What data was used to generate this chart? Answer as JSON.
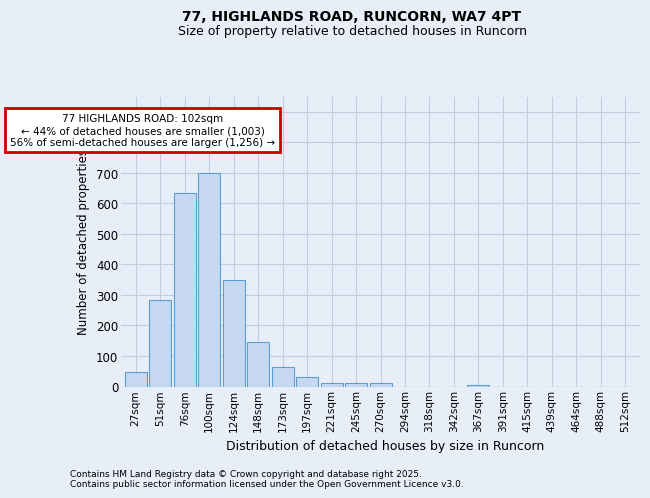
{
  "title1": "77, HIGHLANDS ROAD, RUNCORN, WA7 4PT",
  "title2": "Size of property relative to detached houses in Runcorn",
  "xlabel": "Distribution of detached houses by size in Runcorn",
  "ylabel": "Number of detached properties",
  "categories": [
    "27sqm",
    "51sqm",
    "76sqm",
    "100sqm",
    "124sqm",
    "148sqm",
    "173sqm",
    "197sqm",
    "221sqm",
    "245sqm",
    "270sqm",
    "294sqm",
    "318sqm",
    "342sqm",
    "367sqm",
    "391sqm",
    "415sqm",
    "439sqm",
    "464sqm",
    "488sqm",
    "512sqm"
  ],
  "values": [
    46,
    285,
    633,
    700,
    350,
    145,
    65,
    30,
    10,
    10,
    10,
    0,
    0,
    0,
    5,
    0,
    0,
    0,
    0,
    0,
    0
  ],
  "bar_color": "#c5d8f0",
  "bar_edge_color": "#5a9fd4",
  "highlight_bar_index": 3,
  "annotation_text": "77 HIGHLANDS ROAD: 102sqm\n← 44% of detached houses are smaller (1,003)\n56% of semi-detached houses are larger (1,256) →",
  "annotation_box_color": "#ffffff",
  "annotation_box_edge_color": "#cc0000",
  "ylim": [
    0,
    950
  ],
  "yticks": [
    0,
    100,
    200,
    300,
    400,
    500,
    600,
    700,
    800,
    900
  ],
  "footer1": "Contains HM Land Registry data © Crown copyright and database right 2025.",
  "footer2": "Contains public sector information licensed under the Open Government Licence v3.0.",
  "bg_color": "#e8eef8",
  "grid_color": "#c0cce0"
}
